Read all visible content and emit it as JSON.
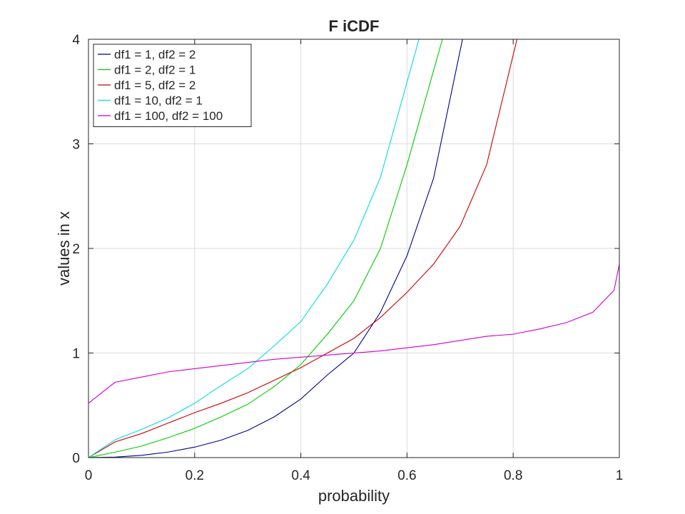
{
  "chart_data": {
    "type": "line",
    "title": "F iCDF",
    "xlabel": "probability",
    "ylabel": "values in x",
    "xlim": [
      0,
      1
    ],
    "ylim": [
      0,
      4
    ],
    "xticks": [
      0,
      0.2,
      0.4,
      0.6,
      0.8,
      1
    ],
    "xtick_labels": [
      "0",
      "0.2",
      "0.4",
      "0.6",
      "0.8",
      "1"
    ],
    "yticks": [
      0,
      1,
      2,
      3,
      4
    ],
    "ytick_labels": [
      "0",
      "1",
      "2",
      "3",
      "4"
    ],
    "grid": true,
    "legend_position": "top-left",
    "x": [
      0,
      0.05,
      0.1,
      0.15,
      0.2,
      0.25,
      0.3,
      0.35,
      0.4,
      0.45,
      0.5,
      0.55,
      0.6,
      0.65,
      0.7,
      0.75,
      0.8,
      0.85,
      0.9,
      0.95,
      0.99,
      1
    ],
    "series": [
      {
        "name": "df1 = 1, df2 = 2",
        "color": "#00008b",
        "values": [
          0,
          0.005,
          0.022,
          0.053,
          0.1,
          0.167,
          0.26,
          0.39,
          0.56,
          0.79,
          1.0,
          1.39,
          1.93,
          2.67,
          3.89,
          null,
          null,
          null,
          null,
          null,
          null,
          null
        ]
      },
      {
        "name": "df1 = 2, df2 = 1",
        "color": "#00cc00",
        "values": [
          0,
          0.052,
          0.11,
          0.19,
          0.28,
          0.39,
          0.51,
          0.68,
          0.89,
          1.18,
          1.5,
          2.0,
          2.8,
          3.7,
          null,
          null,
          null,
          null,
          null,
          null,
          null,
          null
        ]
      },
      {
        "name": "df1 = 5, df2 = 2",
        "color": "#cc0000",
        "values": [
          0,
          0.15,
          0.23,
          0.33,
          0.43,
          0.52,
          0.62,
          0.74,
          0.86,
          1.0,
          1.14,
          1.34,
          1.58,
          1.85,
          2.21,
          2.8,
          3.85,
          null,
          null,
          null,
          null,
          null
        ]
      },
      {
        "name": "df1 = 10, df2 = 1",
        "color": "#00dddd",
        "values": [
          0,
          0.17,
          0.27,
          0.38,
          0.52,
          0.69,
          0.85,
          1.07,
          1.3,
          1.66,
          2.08,
          2.68,
          3.59,
          null,
          null,
          null,
          null,
          null,
          null,
          null,
          null,
          null
        ]
      },
      {
        "name": "df1 = 100, df2 = 100",
        "color": "#cc00cc",
        "values": [
          0.52,
          0.72,
          0.77,
          0.82,
          0.85,
          0.88,
          0.91,
          0.94,
          0.96,
          0.98,
          1.0,
          1.02,
          1.05,
          1.08,
          1.12,
          1.16,
          1.18,
          1.23,
          1.29,
          1.39,
          1.6,
          1.85
        ]
      }
    ]
  }
}
